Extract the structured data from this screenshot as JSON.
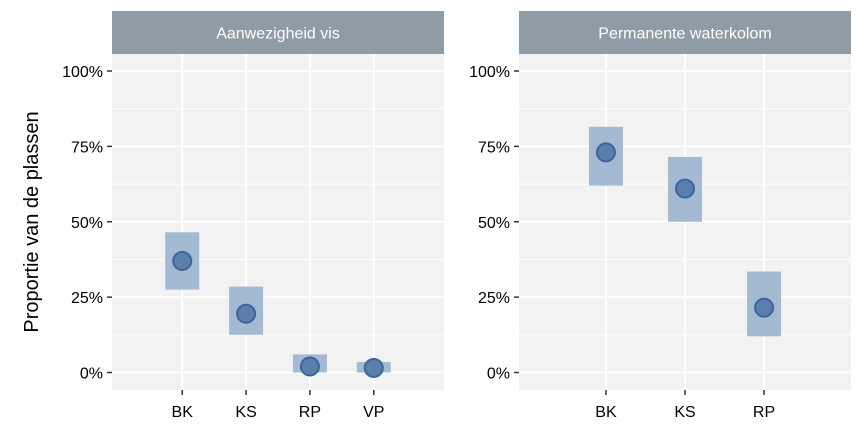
{
  "chart_data": {
    "type": "scatter",
    "ylabel": "Proportie van de plassen",
    "y_ticks": [
      "0%",
      "25%",
      "50%",
      "75%",
      "100%"
    ],
    "ylim": [
      0,
      100
    ],
    "grid": true,
    "colors": {
      "panel_bg": "#f2f2f2",
      "strip_bg": "#909ca5",
      "grid": "#ffffff",
      "point_fill": "#5a7fad",
      "point_stroke": "#3f6498",
      "interval": "#a4b9d2"
    },
    "panels": [
      {
        "title": "Aanwezigheid vis",
        "categories": [
          "BK",
          "KS",
          "RP",
          "VP"
        ],
        "values": [
          37,
          19.5,
          2,
          1.5
        ],
        "lower": [
          27.5,
          12.5,
          0,
          0
        ],
        "upper": [
          46.5,
          28.5,
          6,
          3.5
        ]
      },
      {
        "title": "Permanente waterkolom",
        "categories": [
          "BK",
          "KS",
          "RP"
        ],
        "values": [
          73,
          61,
          21.5
        ],
        "lower": [
          62,
          50,
          12
        ],
        "upper": [
          81.5,
          71.5,
          33.5
        ]
      }
    ]
  }
}
